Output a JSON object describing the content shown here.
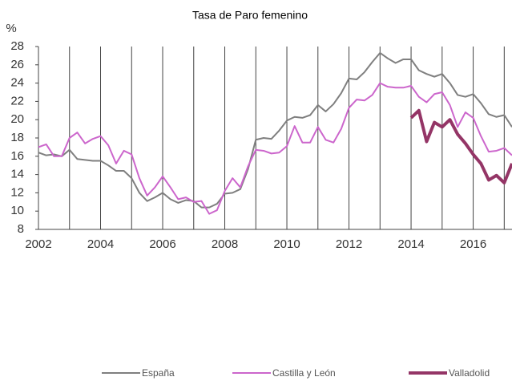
{
  "chart_data": {
    "type": "line",
    "title": "Tasa de Paro femenino",
    "y_label": "%",
    "x": [
      2002,
      2002.25,
      2002.5,
      2002.75,
      2003,
      2003.25,
      2003.5,
      2003.75,
      2004,
      2004.25,
      2004.5,
      2004.75,
      2005,
      2005.25,
      2005.5,
      2005.75,
      2006,
      2006.25,
      2006.5,
      2006.75,
      2007,
      2007.25,
      2007.5,
      2007.75,
      2008,
      2008.25,
      2008.5,
      2008.75,
      2009,
      2009.25,
      2009.5,
      2009.75,
      2010,
      2010.25,
      2010.5,
      2010.75,
      2011,
      2011.25,
      2011.5,
      2011.75,
      2012,
      2012.25,
      2012.5,
      2012.75,
      2013,
      2013.25,
      2013.5,
      2013.75,
      2014,
      2014.25,
      2014.5,
      2014.75,
      2015,
      2015.25,
      2015.5,
      2015.75,
      2016,
      2016.25,
      2016.5,
      2016.75,
      2017,
      2017.25
    ],
    "series": [
      {
        "name": "España",
        "color": "#7f7f7f",
        "width": 2,
        "values": [
          16.4,
          16.1,
          16.2,
          16.0,
          16.7,
          15.7,
          15.6,
          15.5,
          15.5,
          15.0,
          14.4,
          14.4,
          13.6,
          12.0,
          11.1,
          11.5,
          12.0,
          11.3,
          10.9,
          11.2,
          11.1,
          10.4,
          10.4,
          10.8,
          11.9,
          12.0,
          12.4,
          14.6,
          17.8,
          18.0,
          17.9,
          18.8,
          19.9,
          20.3,
          20.2,
          20.5,
          21.6,
          20.9,
          21.7,
          22.9,
          24.5,
          24.4,
          25.2,
          26.3,
          27.3,
          26.7,
          26.2,
          26.6,
          26.6,
          25.4,
          25.0,
          24.7,
          25.0,
          24.0,
          22.7,
          22.5,
          22.8,
          21.8,
          20.6,
          20.3,
          20.5,
          19.2
        ]
      },
      {
        "name": "Castilla y León",
        "color": "#cc66cc",
        "width": 2,
        "values": [
          17.0,
          17.3,
          16.0,
          16.0,
          18.0,
          18.6,
          17.4,
          17.9,
          18.2,
          17.2,
          15.2,
          16.6,
          16.2,
          13.6,
          11.7,
          12.6,
          13.8,
          12.6,
          11.3,
          11.5,
          11.0,
          11.1,
          9.7,
          10.1,
          12.2,
          13.6,
          12.6,
          14.9,
          16.7,
          16.6,
          16.3,
          16.4,
          17.1,
          19.3,
          17.5,
          17.5,
          19.2,
          17.8,
          17.5,
          19.0,
          21.3,
          22.2,
          22.1,
          22.7,
          24.0,
          23.6,
          23.5,
          23.5,
          23.7,
          22.5,
          21.9,
          22.8,
          23.0,
          21.6,
          19.2,
          20.8,
          20.2,
          18.2,
          16.5,
          16.6,
          16.9,
          16.1
        ]
      },
      {
        "name": "Valladolid",
        "color": "#943566",
        "width": 4,
        "values": [
          null,
          null,
          null,
          null,
          null,
          null,
          null,
          null,
          null,
          null,
          null,
          null,
          null,
          null,
          null,
          null,
          null,
          null,
          null,
          null,
          null,
          null,
          null,
          null,
          null,
          null,
          null,
          null,
          null,
          null,
          null,
          null,
          null,
          null,
          null,
          null,
          null,
          null,
          null,
          null,
          null,
          null,
          null,
          null,
          null,
          null,
          null,
          null,
          20.2,
          21.0,
          17.6,
          19.7,
          19.2,
          20.0,
          18.4,
          17.4,
          16.2,
          15.2,
          13.4,
          13.9,
          13.1,
          15.2
        ]
      }
    ],
    "xlim": [
      2002,
      2017.25
    ],
    "xticks": [
      2002,
      2004,
      2006,
      2008,
      2010,
      2012,
      2014,
      2016
    ],
    "xgrid": [
      2002,
      2003,
      2004,
      2005,
      2006,
      2007,
      2008,
      2009,
      2010,
      2011,
      2012,
      2013,
      2014,
      2015,
      2016,
      2017
    ],
    "ylim": [
      8,
      28
    ],
    "yticks": [
      8,
      10,
      12,
      14,
      16,
      18,
      20,
      22,
      24,
      26,
      28
    ],
    "legend": "bottom"
  }
}
